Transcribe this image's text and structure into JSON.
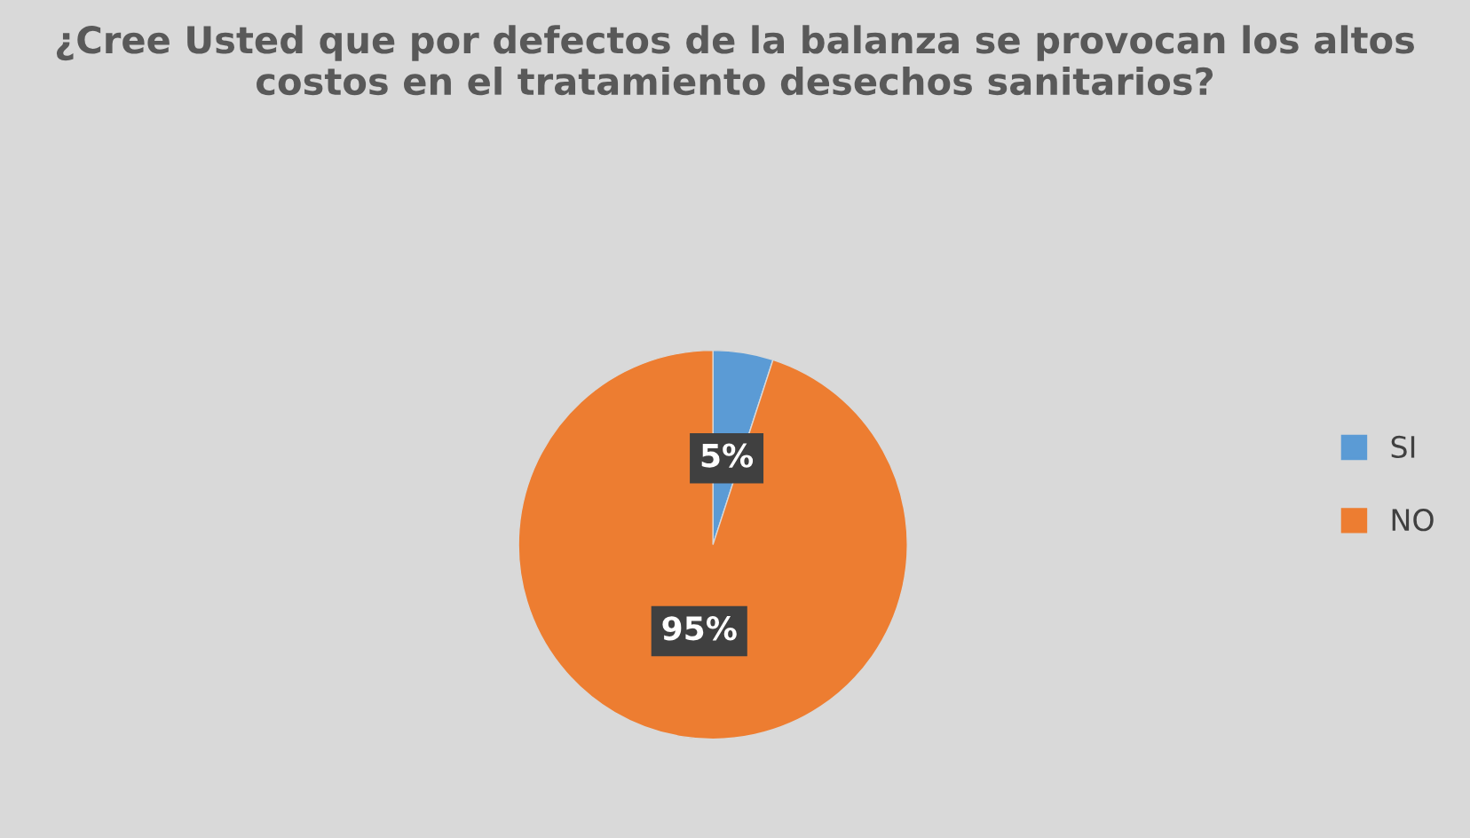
{
  "chart_data": {
    "type": "pie",
    "title": "¿Cree Usted que por defectos de la balanza se provocan los altos costos en el tratamiento desechos sanitarios?",
    "categories": [
      "SI",
      "NO"
    ],
    "values": [
      5,
      95
    ],
    "colors": [
      "#5b9bd5",
      "#ed7d31"
    ],
    "value_labels": [
      "5%",
      "95%"
    ],
    "legend": "right"
  }
}
